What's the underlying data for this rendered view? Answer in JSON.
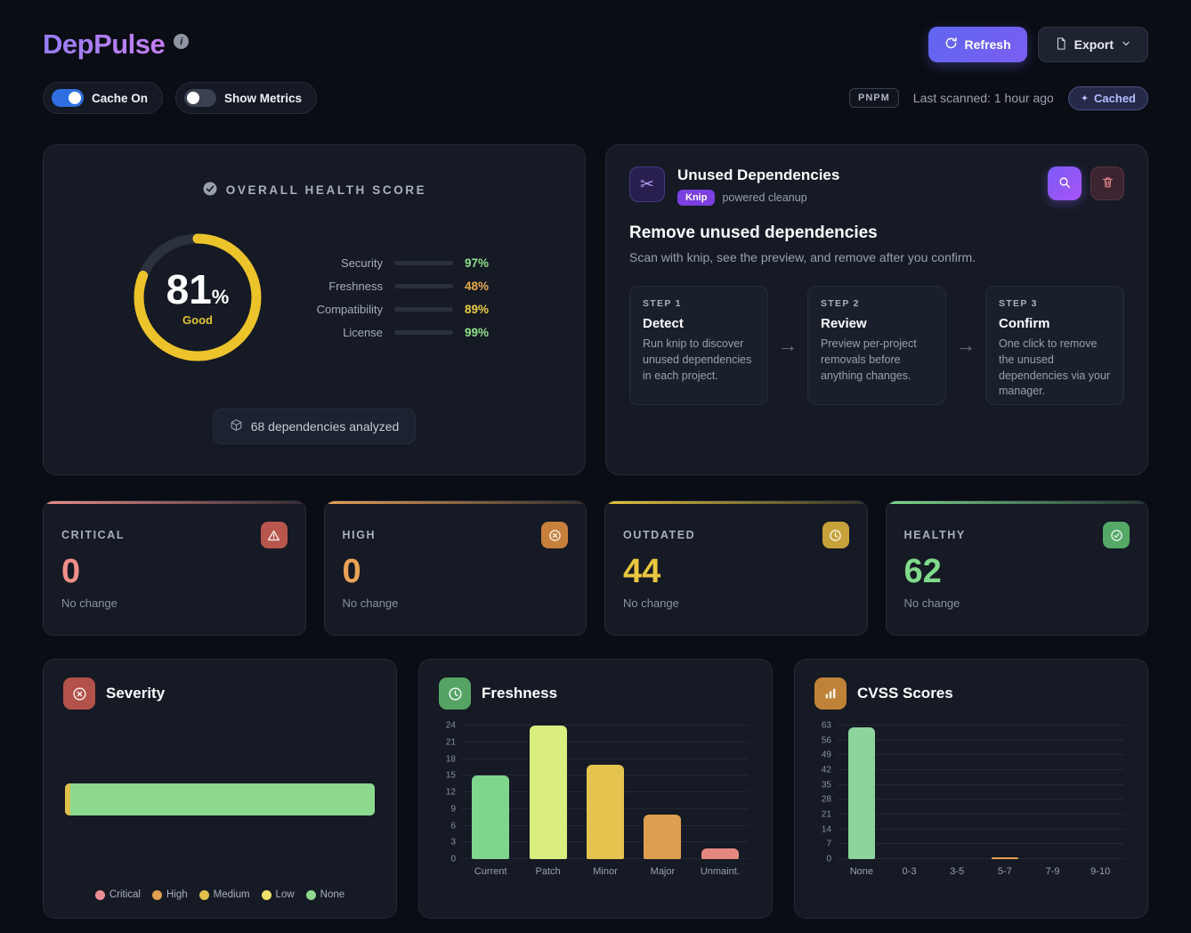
{
  "header": {
    "app_name": "DepPulse",
    "refresh_label": "Refresh",
    "export_label": "Export"
  },
  "toolbar": {
    "cache_toggle": "Cache On",
    "metrics_toggle": "Show Metrics",
    "package_manager": "PNPM",
    "last_scanned": "Last scanned: 1 hour ago",
    "cached_badge": "Cached"
  },
  "colors": {
    "ring": "#ecc32b",
    "ring_track": "#2c313e",
    "accent_purple": "#a78bfa"
  },
  "health": {
    "title": "OVERALL HEALTH SCORE",
    "score": "81",
    "percent_sign": "%",
    "score_pct": 81,
    "grade": "Good",
    "metrics": [
      {
        "label": "Security",
        "value": "97%",
        "pct": 97,
        "color": "#6fcf6f",
        "value_color": "#8fe08a"
      },
      {
        "label": "Freshness",
        "value": "48%",
        "pct": 48,
        "color": "#dd9a3e",
        "value_color": "#eaa94a"
      },
      {
        "label": "Compatibility",
        "value": "89%",
        "pct": 89,
        "color": "#d9bc3a",
        "value_color": "#e9cd45"
      },
      {
        "label": "License",
        "value": "99%",
        "pct": 99,
        "color": "#6fcf6f",
        "value_color": "#8fe08a"
      }
    ],
    "summary": "68 dependencies analyzed"
  },
  "unused": {
    "title": "Unused Dependencies",
    "tool_badge": "Knip",
    "badge_caption": "powered cleanup",
    "heading": "Remove unused dependencies",
    "description": "Scan with knip, see the preview, and remove after you confirm.",
    "steps": [
      {
        "kicker": "STEP 1",
        "title": "Detect",
        "description": "Run knip to discover unused dependencies in each project."
      },
      {
        "kicker": "STEP 2",
        "title": "Review",
        "description": "Preview per-project removals before anything changes."
      },
      {
        "kicker": "STEP 3",
        "title": "Confirm",
        "description": "One click to remove the unused dependencies via your manager."
      }
    ]
  },
  "stats": [
    {
      "label": "CRITICAL",
      "value": "0",
      "change": "No change",
      "icon": "alert-triangle",
      "color": "#ee8f88",
      "icon_bg": "#b8564e"
    },
    {
      "label": "HIGH",
      "value": "0",
      "change": "No change",
      "icon": "x-circle",
      "color": "#eaa257",
      "icon_bg": "#c77f3c"
    },
    {
      "label": "OUTDATED",
      "value": "44",
      "change": "No change",
      "icon": "clock",
      "color": "#e8c63f",
      "icon_bg": "#c7a23b"
    },
    {
      "label": "HEALTHY",
      "value": "62",
      "change": "No change",
      "icon": "check-circle",
      "color": "#80da8c",
      "icon_bg": "#55a967"
    }
  ],
  "chart_data": [
    {
      "type": "bar",
      "orientation": "horizontal",
      "stacked": true,
      "title": "Severity",
      "icon_bg": "#b2524a",
      "categories": [
        "Critical",
        "High",
        "Medium",
        "Low",
        "None"
      ],
      "values": [
        0,
        0,
        1,
        0,
        62
      ],
      "colors": [
        "#ec8e94",
        "#e2a050",
        "#dfc04b",
        "#efe06a",
        "#8cd88f"
      ],
      "legend_position": "bottom"
    },
    {
      "type": "bar",
      "title": "Freshness",
      "icon_bg": "#55a465",
      "categories": [
        "Current",
        "Patch",
        "Minor",
        "Major",
        "Unmaint."
      ],
      "values": [
        15,
        24,
        17,
        8,
        2
      ],
      "colors": [
        "#7ed68d",
        "#daee7f",
        "#e4c44e",
        "#dd9f4f",
        "#e4887f"
      ],
      "ylim": [
        0,
        24
      ],
      "yticks": [
        0,
        3,
        6,
        9,
        12,
        15,
        18,
        21,
        24
      ],
      "grid": true
    },
    {
      "type": "bar",
      "title": "CVSS Scores",
      "icon_bg": "#c08238",
      "categories": [
        "None",
        "0-3",
        "3-5",
        "5-7",
        "7-9",
        "9-10"
      ],
      "values": [
        62,
        0,
        0,
        1,
        0,
        0
      ],
      "colors": [
        "#8cd49c",
        "#8cd49c",
        "#8cd49c",
        "#e2a050",
        "#8cd49c",
        "#8cd49c"
      ],
      "ylim": [
        0,
        63
      ],
      "yticks": [
        0,
        7,
        14,
        21,
        28,
        35,
        42,
        49,
        56,
        63
      ],
      "grid": true
    }
  ]
}
